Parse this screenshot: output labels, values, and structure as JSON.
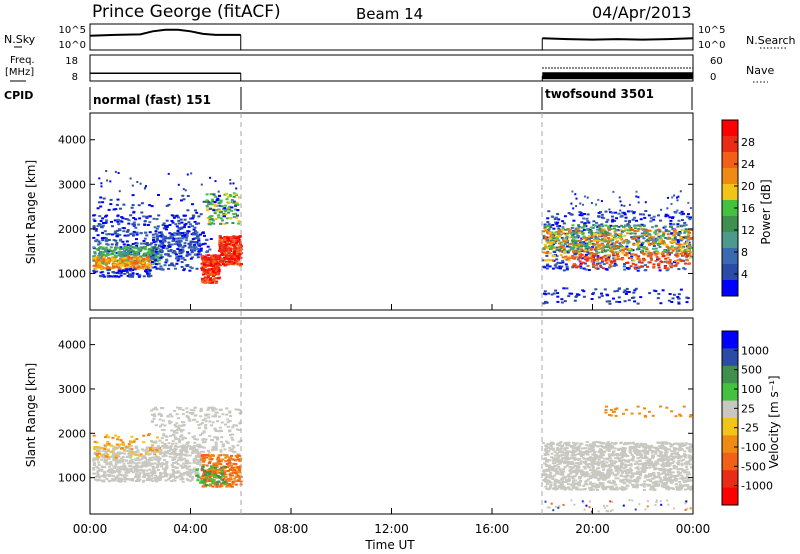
{
  "header": {
    "station": "Prince George (fitACF)",
    "beam": "Beam 14",
    "date": "04/Apr/2013"
  },
  "left_labels": {
    "nsky": "N.Sky",
    "freq": "Freq.",
    "freq_unit": "[MHz]",
    "cpid": "CPID"
  },
  "right_labels": {
    "nsearch": "N.Search",
    "nave": "Nave"
  },
  "noise_axis_ticks": [
    "10^5",
    "10^0"
  ],
  "freq_axis_ticks": [
    "18",
    "8"
  ],
  "nave_axis_ticks": [
    "60",
    "0"
  ],
  "cpid_labels": [
    "normal (fast) 151",
    "twofsound 3501"
  ],
  "colors": {
    "scale_steps": [
      "#0000ff",
      "#2a4ba8",
      "#3a6bb0",
      "#4b9a8c",
      "#3f8f4e",
      "#44c23f",
      "#f2c417",
      "#ef8a15",
      "#f26018",
      "#ea2b16",
      "#ff0000"
    ],
    "velocity_steps": [
      "#0000ff",
      "#2a4ba8",
      "#3f8f4e",
      "#44c23f",
      "#c8c8c0",
      "#f2c417",
      "#ef8a15",
      "#f26018",
      "#ea2b16",
      "#ff0000"
    ]
  },
  "chart_data": [
    {
      "type": "line",
      "panel": "noise",
      "ylabel_left": "N.Sky",
      "ylabel_right": "N.Search",
      "xlim": [
        "00:00",
        "24:00"
      ],
      "segments": [
        {
          "x_hours": [
            0.0,
            1.0,
            2.0,
            2.5,
            3.0,
            3.5,
            4.0,
            4.5,
            5.0,
            5.5,
            6.0
          ],
          "level": [
            0.55,
            0.58,
            0.6,
            0.72,
            0.78,
            0.78,
            0.72,
            0.62,
            0.58,
            0.58,
            0.58
          ]
        },
        {
          "x_hours": [
            18.0,
            19.0,
            20.0,
            21.0,
            22.0,
            23.0,
            24.0
          ],
          "level": [
            0.45,
            0.42,
            0.4,
            0.42,
            0.4,
            0.42,
            0.45
          ]
        }
      ]
    },
    {
      "type": "line",
      "panel": "frequency",
      "ylabel_left": "Freq. [MHz]",
      "ylabel_right": "Nave",
      "ylim_left": [
        8,
        18
      ],
      "ylim_right": [
        0,
        60
      ],
      "segments": [
        {
          "x_hours": [
            0.0,
            6.0
          ],
          "freq_mhz": [
            11,
            11
          ],
          "nave": [
            18,
            18
          ]
        },
        {
          "x_hours": [
            18.0,
            24.0
          ],
          "freq_mhz": [
            10,
            10
          ],
          "nave": [
            30,
            30
          ]
        }
      ]
    },
    {
      "type": "heatmap",
      "panel": "power",
      "ylabel": "Slant Range [km]",
      "colorbar_label": "Power [dB]",
      "colorbar_ticks": [
        "28",
        "24",
        "20",
        "16",
        "12",
        "8",
        "4"
      ],
      "ylim": [
        180,
        4600
      ],
      "y_ticks": [
        "4000",
        "3000",
        "2000",
        "1000"
      ],
      "xlim": [
        "00:00",
        "24:00"
      ]
    },
    {
      "type": "heatmap",
      "panel": "velocity",
      "ylabel": "Slant Range [km]",
      "colorbar_label": "Velocity [m s⁻¹]",
      "colorbar_ticks": [
        "1000",
        "500",
        "100",
        "25",
        "-25",
        "-100",
        "-500",
        "-1000"
      ],
      "ylim": [
        180,
        4600
      ],
      "y_ticks": [
        "4000",
        "3000",
        "2000",
        "1000"
      ],
      "xlim": [
        "00:00",
        "24:00"
      ]
    }
  ],
  "x_axis": {
    "ticks": [
      "00:00",
      "04:00",
      "08:00",
      "12:00",
      "16:00",
      "20:00",
      "00:00"
    ],
    "label": "Time UT"
  }
}
